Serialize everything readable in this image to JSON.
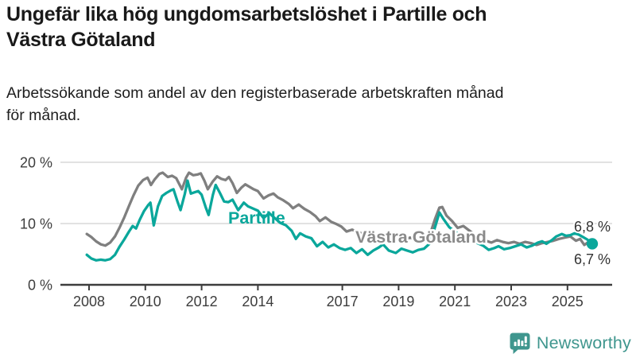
{
  "header": {
    "title": "Ungefär lika hög ungdomsarbetslöshet i Partille och\nVästra Götaland",
    "subtitle": "Arbetssökande som andel av den registerbaserade arbetskraften månad\nför månad."
  },
  "chart_data": {
    "type": "line",
    "title": "Ungefär lika hög ungdomsarbetslöshet i Partille och Västra Götaland",
    "subtitle": "Arbetssökande som andel av den registerbaserade arbetskraften månad för månad.",
    "xlabel": "",
    "ylabel": "",
    "x_unit": "year (monthly observations)",
    "y_unit": "percent",
    "xlim": [
      2007.8,
      2026.4
    ],
    "ylim": [
      0,
      21
    ],
    "grid": "horizontal",
    "legend_position": "inline-labels",
    "y_ticks": [
      {
        "value": 0,
        "label": "0 %"
      },
      {
        "value": 10,
        "label": "10 %"
      },
      {
        "value": 20,
        "label": "20 %"
      }
    ],
    "x_ticks": [
      {
        "value": 2008,
        "label": "2008"
      },
      {
        "value": 2010,
        "label": "2010"
      },
      {
        "value": 2012,
        "label": "2012"
      },
      {
        "value": 2014,
        "label": "2014"
      },
      {
        "value": 2017,
        "label": "2017"
      },
      {
        "value": 2019,
        "label": "2019"
      },
      {
        "value": 2021,
        "label": "2021"
      },
      {
        "value": 2023,
        "label": "2023"
      },
      {
        "value": 2025,
        "label": "2025"
      }
    ],
    "series": [
      {
        "name": "Västra Götaland",
        "color": "#7f7f7f",
        "label_color": "#8a8a8a",
        "end_label": "6,8 %",
        "end_value": 6.8,
        "end_dot": false,
        "points": [
          [
            2007.92,
            8.3
          ],
          [
            2008.08,
            7.8
          ],
          [
            2008.25,
            7.1
          ],
          [
            2008.42,
            6.6
          ],
          [
            2008.58,
            6.4
          ],
          [
            2008.75,
            6.9
          ],
          [
            2008.92,
            7.9
          ],
          [
            2009.08,
            9.3
          ],
          [
            2009.25,
            11.0
          ],
          [
            2009.42,
            12.9
          ],
          [
            2009.58,
            14.6
          ],
          [
            2009.75,
            16.2
          ],
          [
            2009.92,
            17.1
          ],
          [
            2010.08,
            17.5
          ],
          [
            2010.2,
            16.3
          ],
          [
            2010.33,
            17.2
          ],
          [
            2010.5,
            18.1
          ],
          [
            2010.62,
            18.3
          ],
          [
            2010.8,
            17.6
          ],
          [
            2010.95,
            17.8
          ],
          [
            2011.1,
            17.4
          ],
          [
            2011.3,
            15.6
          ],
          [
            2011.45,
            17.5
          ],
          [
            2011.55,
            18.3
          ],
          [
            2011.7,
            17.9
          ],
          [
            2011.85,
            18.0
          ],
          [
            2011.97,
            18.2
          ],
          [
            2012.1,
            17.0
          ],
          [
            2012.22,
            15.6
          ],
          [
            2012.4,
            16.9
          ],
          [
            2012.55,
            17.7
          ],
          [
            2012.7,
            17.3
          ],
          [
            2012.85,
            17.1
          ],
          [
            2012.97,
            17.6
          ],
          [
            2013.1,
            16.6
          ],
          [
            2013.25,
            15.0
          ],
          [
            2013.42,
            15.9
          ],
          [
            2013.55,
            16.4
          ],
          [
            2013.7,
            16.0
          ],
          [
            2013.85,
            15.6
          ],
          [
            2014.0,
            15.3
          ],
          [
            2014.2,
            14.1
          ],
          [
            2014.38,
            14.6
          ],
          [
            2014.55,
            14.9
          ],
          [
            2014.7,
            14.3
          ],
          [
            2014.9,
            13.8
          ],
          [
            2015.1,
            13.2
          ],
          [
            2015.25,
            12.5
          ],
          [
            2015.45,
            13.1
          ],
          [
            2015.65,
            12.4
          ],
          [
            2015.85,
            11.9
          ],
          [
            2016.05,
            11.2
          ],
          [
            2016.2,
            10.4
          ],
          [
            2016.4,
            11.0
          ],
          [
            2016.6,
            10.3
          ],
          [
            2016.8,
            9.9
          ],
          [
            2016.97,
            9.5
          ],
          [
            2017.15,
            8.7
          ],
          [
            2017.35,
            9.0
          ],
          [
            2017.55,
            8.6
          ],
          [
            2017.75,
            8.3
          ],
          [
            2017.95,
            7.9
          ],
          [
            2018.15,
            7.5
          ],
          [
            2018.4,
            8.1
          ],
          [
            2018.65,
            7.6
          ],
          [
            2018.9,
            7.3
          ],
          [
            2019.15,
            7.1
          ],
          [
            2019.4,
            7.7
          ],
          [
            2019.65,
            7.3
          ],
          [
            2019.9,
            7.4
          ],
          [
            2020.1,
            8.0
          ],
          [
            2020.3,
            10.8
          ],
          [
            2020.45,
            12.6
          ],
          [
            2020.55,
            12.7
          ],
          [
            2020.7,
            11.3
          ],
          [
            2020.9,
            10.4
          ],
          [
            2021.1,
            9.3
          ],
          [
            2021.3,
            9.6
          ],
          [
            2021.5,
            8.9
          ],
          [
            2021.7,
            8.2
          ],
          [
            2021.9,
            7.7
          ],
          [
            2022.1,
            7.2
          ],
          [
            2022.3,
            6.9
          ],
          [
            2022.5,
            7.3
          ],
          [
            2022.7,
            7.0
          ],
          [
            2022.9,
            6.8
          ],
          [
            2023.1,
            7.0
          ],
          [
            2023.3,
            6.7
          ],
          [
            2023.5,
            7.0
          ],
          [
            2023.7,
            6.8
          ],
          [
            2023.9,
            6.5
          ],
          [
            2024.1,
            6.8
          ],
          [
            2024.3,
            7.0
          ],
          [
            2024.5,
            7.2
          ],
          [
            2024.7,
            7.5
          ],
          [
            2024.9,
            7.7
          ],
          [
            2025.1,
            7.9
          ],
          [
            2025.3,
            7.2
          ],
          [
            2025.45,
            7.5
          ],
          [
            2025.6,
            6.5
          ],
          [
            2025.75,
            7.0
          ],
          [
            2025.88,
            6.8
          ]
        ]
      },
      {
        "name": "Partille",
        "color": "#0aa79b",
        "label_color": "#0aa79b",
        "end_label": "6,7 %",
        "end_value": 6.7,
        "end_dot": true,
        "points": [
          [
            2007.92,
            4.9
          ],
          [
            2008.08,
            4.3
          ],
          [
            2008.25,
            4.0
          ],
          [
            2008.42,
            4.1
          ],
          [
            2008.58,
            4.0
          ],
          [
            2008.75,
            4.2
          ],
          [
            2008.92,
            4.9
          ],
          [
            2009.08,
            6.2
          ],
          [
            2009.25,
            7.4
          ],
          [
            2009.42,
            8.7
          ],
          [
            2009.55,
            9.6
          ],
          [
            2009.67,
            9.2
          ],
          [
            2009.8,
            10.6
          ],
          [
            2009.95,
            12.0
          ],
          [
            2010.1,
            13.0
          ],
          [
            2010.18,
            13.4
          ],
          [
            2010.3,
            9.7
          ],
          [
            2010.45,
            12.8
          ],
          [
            2010.6,
            14.5
          ],
          [
            2010.75,
            15.0
          ],
          [
            2010.9,
            15.4
          ],
          [
            2011.0,
            15.6
          ],
          [
            2011.15,
            13.5
          ],
          [
            2011.25,
            12.2
          ],
          [
            2011.4,
            14.8
          ],
          [
            2011.5,
            17.0
          ],
          [
            2011.62,
            14.9
          ],
          [
            2011.75,
            15.1
          ],
          [
            2011.88,
            15.3
          ],
          [
            2012.0,
            14.7
          ],
          [
            2012.15,
            12.6
          ],
          [
            2012.25,
            11.4
          ],
          [
            2012.4,
            14.7
          ],
          [
            2012.5,
            16.3
          ],
          [
            2012.65,
            15.0
          ],
          [
            2012.8,
            13.6
          ],
          [
            2012.95,
            13.5
          ],
          [
            2013.1,
            13.9
          ],
          [
            2013.3,
            12.2
          ],
          [
            2013.5,
            13.4
          ],
          [
            2013.65,
            12.8
          ],
          [
            2013.85,
            12.4
          ],
          [
            2014.0,
            12.1
          ],
          [
            2014.2,
            10.9
          ],
          [
            2014.4,
            11.7
          ],
          [
            2014.6,
            10.9
          ],
          [
            2014.8,
            10.1
          ],
          [
            2015.0,
            9.7
          ],
          [
            2015.2,
            8.8
          ],
          [
            2015.35,
            7.5
          ],
          [
            2015.5,
            8.4
          ],
          [
            2015.7,
            7.9
          ],
          [
            2015.9,
            7.6
          ],
          [
            2016.1,
            6.3
          ],
          [
            2016.3,
            7.0
          ],
          [
            2016.5,
            6.1
          ],
          [
            2016.7,
            6.6
          ],
          [
            2016.9,
            6.0
          ],
          [
            2017.1,
            5.7
          ],
          [
            2017.3,
            6.0
          ],
          [
            2017.5,
            5.2
          ],
          [
            2017.7,
            5.8
          ],
          [
            2017.9,
            4.9
          ],
          [
            2018.1,
            5.6
          ],
          [
            2018.3,
            6.1
          ],
          [
            2018.45,
            6.6
          ],
          [
            2018.65,
            5.6
          ],
          [
            2018.9,
            5.2
          ],
          [
            2019.1,
            5.9
          ],
          [
            2019.3,
            5.6
          ],
          [
            2019.5,
            5.3
          ],
          [
            2019.7,
            5.7
          ],
          [
            2019.9,
            5.9
          ],
          [
            2020.1,
            6.7
          ],
          [
            2020.3,
            9.5
          ],
          [
            2020.45,
            11.8
          ],
          [
            2020.6,
            10.7
          ],
          [
            2020.8,
            9.4
          ],
          [
            2021.0,
            8.7
          ],
          [
            2021.2,
            8.0
          ],
          [
            2021.4,
            7.6
          ],
          [
            2021.6,
            7.2
          ],
          [
            2021.8,
            6.8
          ],
          [
            2022.0,
            6.4
          ],
          [
            2022.2,
            5.7
          ],
          [
            2022.4,
            6.0
          ],
          [
            2022.55,
            6.3
          ],
          [
            2022.75,
            5.8
          ],
          [
            2022.95,
            6.0
          ],
          [
            2023.15,
            6.3
          ],
          [
            2023.35,
            6.6
          ],
          [
            2023.55,
            6.1
          ],
          [
            2023.75,
            6.4
          ],
          [
            2023.95,
            6.9
          ],
          [
            2024.1,
            7.1
          ],
          [
            2024.25,
            6.7
          ],
          [
            2024.45,
            7.3
          ],
          [
            2024.6,
            7.9
          ],
          [
            2024.8,
            8.3
          ],
          [
            2024.95,
            8.0
          ],
          [
            2025.1,
            8.1
          ],
          [
            2025.25,
            8.4
          ],
          [
            2025.4,
            8.2
          ],
          [
            2025.55,
            7.8
          ],
          [
            2025.7,
            7.4
          ],
          [
            2025.88,
            6.7
          ]
        ]
      }
    ],
    "colors": {
      "partille_line": "#0aa79b",
      "vastra_gotaland_line": "#7f7f7f",
      "gridline": "#d9d9d9",
      "axis": "#3d3d3d",
      "tick_label": "#3d3d3d",
      "end_label": "#333333",
      "brand_teal": "#3f968e"
    }
  },
  "footer": {
    "brand": "Newsworthy"
  }
}
